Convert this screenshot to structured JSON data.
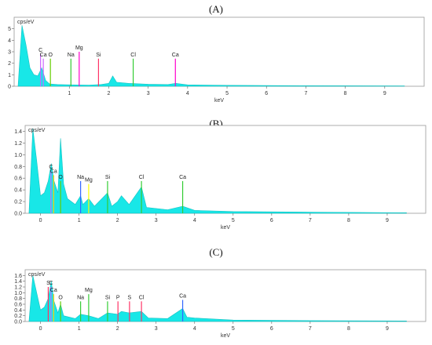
{
  "panels": [
    {
      "label": "(A)"
    },
    {
      "label": "(B)"
    },
    {
      "label": "(C)"
    }
  ],
  "chart_data": [
    {
      "type": "area",
      "ylabel": "cps/eV",
      "xlabel": "keV",
      "xlim": [
        -0.4,
        10
      ],
      "ylim": [
        0,
        6
      ],
      "x_ticks": [
        "1",
        "2",
        "3",
        "4",
        "5",
        "6",
        "7",
        "8",
        "9"
      ],
      "y_ticks": [
        "0",
        "1",
        "2",
        "3",
        "4",
        "5"
      ],
      "fill_color": "#00e5e5",
      "spectrum": [
        {
          "x": -0.3,
          "y": 0.0
        },
        {
          "x": -0.2,
          "y": 5.3
        },
        {
          "x": -0.1,
          "y": 3.6
        },
        {
          "x": 0.0,
          "y": 1.6
        },
        {
          "x": 0.1,
          "y": 1.0
        },
        {
          "x": 0.2,
          "y": 0.9
        },
        {
          "x": 0.3,
          "y": 1.6
        },
        {
          "x": 0.4,
          "y": 0.5
        },
        {
          "x": 0.5,
          "y": 0.2
        },
        {
          "x": 0.7,
          "y": 0.15
        },
        {
          "x": 1.0,
          "y": 0.12
        },
        {
          "x": 1.5,
          "y": 0.1
        },
        {
          "x": 1.8,
          "y": 0.15
        },
        {
          "x": 2.0,
          "y": 0.25
        },
        {
          "x": 2.1,
          "y": 0.9
        },
        {
          "x": 2.2,
          "y": 0.35
        },
        {
          "x": 2.5,
          "y": 0.25
        },
        {
          "x": 3.0,
          "y": 0.18
        },
        {
          "x": 3.5,
          "y": 0.15
        },
        {
          "x": 3.7,
          "y": 0.25
        },
        {
          "x": 4.0,
          "y": 0.12
        },
        {
          "x": 5.0,
          "y": 0.08
        },
        {
          "x": 7.0,
          "y": 0.05
        },
        {
          "x": 9.5,
          "y": 0.03
        }
      ],
      "peaks": [
        {
          "label": "C",
          "x": 0.27,
          "color": "#cc66ff",
          "height": 2.8
        },
        {
          "label": "Ca",
          "x": 0.34,
          "color": "#cc66ff",
          "height": 2.4
        },
        {
          "label": "O",
          "x": 0.52,
          "color": "#66cc00",
          "height": 2.4
        },
        {
          "label": "Na",
          "x": 1.04,
          "color": "#33cc33",
          "height": 2.4
        },
        {
          "label": "Mg",
          "x": 1.25,
          "color": "#ff00cc",
          "height": 3.0
        },
        {
          "label": "Si",
          "x": 1.74,
          "color": "#ff3366",
          "height": 2.4
        },
        {
          "label": "Cl",
          "x": 2.62,
          "color": "#33cc33",
          "height": 2.4
        },
        {
          "label": "Ca",
          "x": 3.69,
          "color": "#ff00cc",
          "height": 2.4
        }
      ]
    },
    {
      "type": "area",
      "ylabel": "cps/eV",
      "xlabel": "keV",
      "xlim": [
        -0.4,
        10
      ],
      "ylim": [
        0,
        1.5
      ],
      "x_ticks": [
        "0",
        "1",
        "2",
        "3",
        "4",
        "5",
        "6",
        "7",
        "8",
        "9"
      ],
      "y_ticks": [
        "0.0",
        "0.2",
        "0.4",
        "0.6",
        "0.8",
        "1.0",
        "1.2",
        "1.4"
      ],
      "fill_color": "#00e5e5",
      "spectrum": [
        {
          "x": -0.3,
          "y": 0.0
        },
        {
          "x": -0.2,
          "y": 1.45
        },
        {
          "x": -0.1,
          "y": 0.9
        },
        {
          "x": 0.0,
          "y": 0.3
        },
        {
          "x": 0.1,
          "y": 0.35
        },
        {
          "x": 0.2,
          "y": 0.55
        },
        {
          "x": 0.28,
          "y": 0.85
        },
        {
          "x": 0.35,
          "y": 0.55
        },
        {
          "x": 0.45,
          "y": 0.35
        },
        {
          "x": 0.52,
          "y": 1.28
        },
        {
          "x": 0.6,
          "y": 0.5
        },
        {
          "x": 0.7,
          "y": 0.25
        },
        {
          "x": 0.9,
          "y": 0.15
        },
        {
          "x": 1.04,
          "y": 0.3
        },
        {
          "x": 1.1,
          "y": 0.15
        },
        {
          "x": 1.25,
          "y": 0.25
        },
        {
          "x": 1.4,
          "y": 0.12
        },
        {
          "x": 1.74,
          "y": 0.35
        },
        {
          "x": 1.85,
          "y": 0.12
        },
        {
          "x": 2.0,
          "y": 0.2
        },
        {
          "x": 2.1,
          "y": 0.3
        },
        {
          "x": 2.3,
          "y": 0.15
        },
        {
          "x": 2.62,
          "y": 0.45
        },
        {
          "x": 2.75,
          "y": 0.1
        },
        {
          "x": 3.3,
          "y": 0.06
        },
        {
          "x": 3.69,
          "y": 0.12
        },
        {
          "x": 4.0,
          "y": 0.05
        },
        {
          "x": 5.0,
          "y": 0.03
        },
        {
          "x": 7.0,
          "y": 0.02
        },
        {
          "x": 9.5,
          "y": 0.01
        }
      ],
      "peaks": [
        {
          "label": "C",
          "x": 0.27,
          "color": "#cc66ff",
          "height": 0.72
        },
        {
          "label": "Ca",
          "x": 0.34,
          "color": "#ffcc00",
          "height": 0.65
        },
        {
          "label": "O",
          "x": 0.52,
          "color": "#66cc00",
          "height": 0.55
        },
        {
          "label": "Na",
          "x": 1.04,
          "color": "#3366ff",
          "height": 0.55
        },
        {
          "label": "Mg",
          "x": 1.25,
          "color": "#ffff00",
          "height": 0.5
        },
        {
          "label": "Si",
          "x": 1.74,
          "color": "#33cc33",
          "height": 0.55
        },
        {
          "label": "Cl",
          "x": 2.62,
          "color": "#33cc33",
          "height": 0.55
        },
        {
          "label": "Ca",
          "x": 3.69,
          "color": "#33cc33",
          "height": 0.55
        }
      ]
    },
    {
      "type": "area",
      "ylabel": "cps/eV",
      "xlabel": "keV",
      "xlim": [
        -0.4,
        10
      ],
      "ylim": [
        0,
        1.8
      ],
      "x_ticks": [
        "0",
        "1",
        "2",
        "3",
        "4",
        "5",
        "6",
        "7",
        "8",
        "9"
      ],
      "y_ticks": [
        "0.0",
        "0.2",
        "0.4",
        "0.6",
        "0.8",
        "1.0",
        "1.2",
        "1.4",
        "1.6"
      ],
      "fill_color": "#00e5e5",
      "spectrum": [
        {
          "x": -0.3,
          "y": 0.0
        },
        {
          "x": -0.2,
          "y": 1.6
        },
        {
          "x": -0.1,
          "y": 1.0
        },
        {
          "x": 0.0,
          "y": 0.4
        },
        {
          "x": 0.1,
          "y": 0.5
        },
        {
          "x": 0.2,
          "y": 0.8
        },
        {
          "x": 0.28,
          "y": 1.4
        },
        {
          "x": 0.35,
          "y": 0.7
        },
        {
          "x": 0.45,
          "y": 0.3
        },
        {
          "x": 0.52,
          "y": 0.6
        },
        {
          "x": 0.6,
          "y": 0.2
        },
        {
          "x": 0.9,
          "y": 0.1
        },
        {
          "x": 1.04,
          "y": 0.25
        },
        {
          "x": 1.25,
          "y": 0.2
        },
        {
          "x": 1.5,
          "y": 0.1
        },
        {
          "x": 1.74,
          "y": 0.3
        },
        {
          "x": 2.0,
          "y": 0.25
        },
        {
          "x": 2.1,
          "y": 0.35
        },
        {
          "x": 2.3,
          "y": 0.3
        },
        {
          "x": 2.62,
          "y": 0.35
        },
        {
          "x": 2.8,
          "y": 0.12
        },
        {
          "x": 3.3,
          "y": 0.1
        },
        {
          "x": 3.69,
          "y": 0.45
        },
        {
          "x": 3.8,
          "y": 0.15
        },
        {
          "x": 4.0,
          "y": 0.12
        },
        {
          "x": 5.0,
          "y": 0.05
        },
        {
          "x": 7.0,
          "y": 0.03
        },
        {
          "x": 9.5,
          "y": 0.02
        }
      ],
      "peaks": [
        {
          "label": "S",
          "x": 0.2,
          "color": "#ff3366",
          "height": 1.2
        },
        {
          "label": "C",
          "x": 0.27,
          "color": "#cc66ff",
          "height": 1.2
        },
        {
          "label": "Ca",
          "x": 0.34,
          "color": "#ffcc00",
          "height": 0.95
        },
        {
          "label": "O",
          "x": 0.52,
          "color": "#66cc00",
          "height": 0.7
        },
        {
          "label": "Na",
          "x": 1.04,
          "color": "#33cc33",
          "height": 0.7
        },
        {
          "label": "Mg",
          "x": 1.25,
          "color": "#33cc33",
          "height": 0.95
        },
        {
          "label": "Si",
          "x": 1.74,
          "color": "#33cc33",
          "height": 0.7
        },
        {
          "label": "P",
          "x": 2.01,
          "color": "#ff3366",
          "height": 0.7
        },
        {
          "label": "S",
          "x": 2.31,
          "color": "#ff3366",
          "height": 0.7
        },
        {
          "label": "Cl",
          "x": 2.62,
          "color": "#ff3366",
          "height": 0.7
        },
        {
          "label": "Ca",
          "x": 3.69,
          "color": "#3366ff",
          "height": 0.75
        }
      ]
    }
  ]
}
